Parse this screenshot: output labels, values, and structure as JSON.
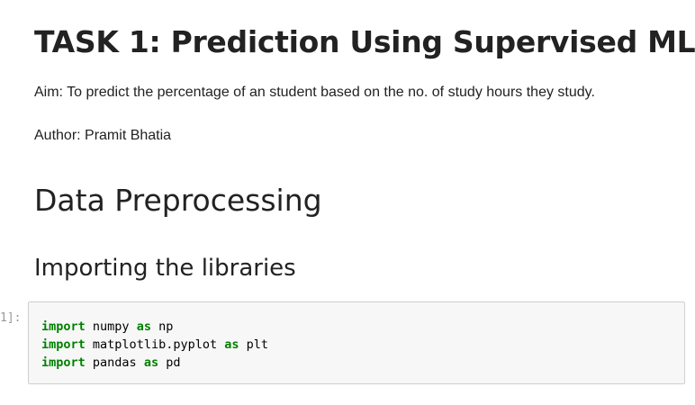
{
  "markdown": {
    "title": "TASK 1: Prediction Using Supervised ML",
    "aim": "Aim: To predict the percentage of an student based on the no. of study hours they study.",
    "author": "Author: Pramit Bhatia",
    "section_heading": "Data Preprocessing",
    "subsection_heading": "Importing the libraries"
  },
  "code_cell": {
    "prompt": "1]:",
    "lines": [
      {
        "kw1": "import",
        "mod": "numpy",
        "kw2": "as",
        "alias": "np"
      },
      {
        "kw1": "import",
        "mod": "matplotlib.pyplot",
        "kw2": "as",
        "alias": "plt"
      },
      {
        "kw1": "import",
        "mod": "pandas",
        "kw2": "as",
        "alias": "pd"
      }
    ]
  },
  "colors": {
    "keyword": "#008000",
    "code_background": "#f7f7f7",
    "prompt_text": "#999999",
    "heading_text": "#222222"
  }
}
